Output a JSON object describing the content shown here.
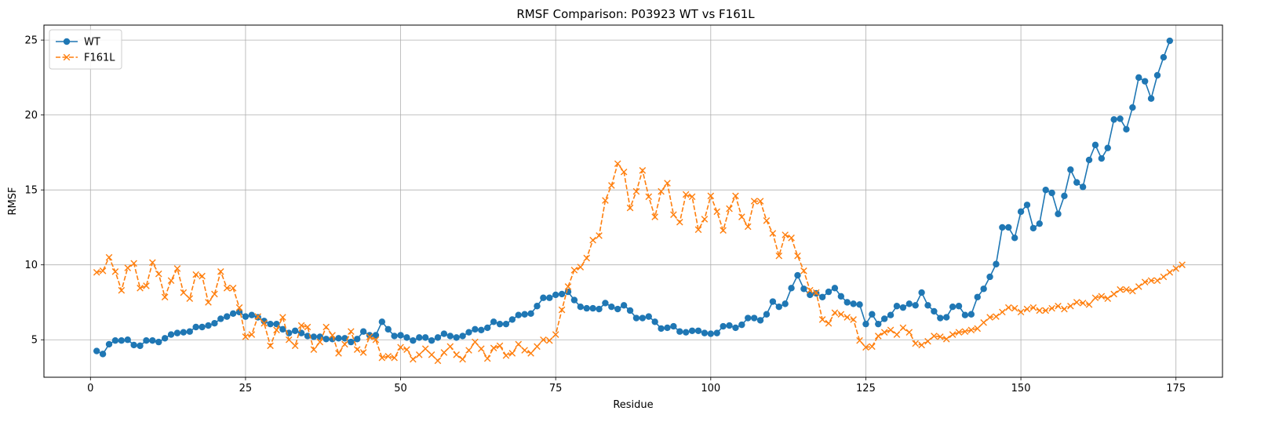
{
  "chart_data": {
    "type": "line",
    "title": "RMSF Comparison: P03923 WT vs F161L",
    "xlabel": "Residue",
    "ylabel": "RMSF",
    "xlim": [
      -7.5,
      182.5
    ],
    "ylim": [
      2.5,
      26.0
    ],
    "x_ticks": [
      0,
      25,
      50,
      75,
      100,
      125,
      150,
      175
    ],
    "y_ticks": [
      5,
      10,
      15,
      20,
      25
    ],
    "grid": true,
    "legend_position": "upper-left",
    "series": [
      {
        "name": "WT",
        "color": "#1f77b4",
        "line_style": "solid",
        "marker": "circle",
        "x_start": 1,
        "values": [
          4.25,
          4.05,
          4.7,
          4.95,
          4.95,
          5.0,
          4.65,
          4.6,
          4.95,
          4.95,
          4.85,
          5.1,
          5.35,
          5.45,
          5.5,
          5.55,
          5.85,
          5.85,
          5.95,
          6.1,
          6.4,
          6.55,
          6.75,
          6.85,
          6.55,
          6.65,
          6.5,
          6.25,
          6.05,
          6.05,
          5.7,
          5.45,
          5.6,
          5.45,
          5.25,
          5.2,
          5.2,
          5.05,
          5.05,
          5.1,
          5.1,
          4.85,
          5.05,
          5.55,
          5.3,
          5.3,
          6.2,
          5.7,
          5.25,
          5.3,
          5.15,
          4.95,
          5.15,
          5.15,
          4.95,
          5.15,
          5.4,
          5.25,
          5.15,
          5.25,
          5.5,
          5.7,
          5.65,
          5.8,
          6.2,
          6.05,
          6.05,
          6.35,
          6.65,
          6.7,
          6.75,
          7.25,
          7.8,
          7.8,
          8.0,
          8.05,
          8.2,
          7.65,
          7.2,
          7.1,
          7.1,
          7.05,
          7.45,
          7.2,
          7.05,
          7.3,
          6.95,
          6.45,
          6.45,
          6.55,
          6.2,
          5.75,
          5.8,
          5.9,
          5.55,
          5.5,
          5.6,
          5.6,
          5.45,
          5.4,
          5.45,
          5.9,
          5.95,
          5.8,
          6.0,
          6.45,
          6.45,
          6.3,
          6.7,
          7.55,
          7.2,
          7.4,
          8.45,
          9.3,
          8.4,
          8.0,
          8.1,
          7.85,
          8.2,
          8.45,
          7.9,
          7.5,
          7.4,
          7.35,
          6.05,
          6.7,
          6.05,
          6.4,
          6.65,
          7.25,
          7.15,
          7.4,
          7.3,
          8.15,
          7.3,
          6.9,
          6.45,
          6.5,
          7.2,
          7.25,
          6.65,
          6.7,
          7.85,
          8.4,
          9.2,
          10.05,
          12.5,
          12.5,
          11.8,
          13.55,
          14.0,
          12.45,
          12.75,
          15.0,
          14.8,
          13.4,
          14.6,
          16.35,
          15.5,
          15.2,
          17.0,
          18.0,
          17.1,
          17.8,
          19.7,
          19.75,
          19.05,
          20.5,
          22.5,
          22.25,
          21.1,
          22.65,
          23.85,
          24.95
        ]
      },
      {
        "name": "F161L",
        "color": "#ff7f0e",
        "line_style": "dashed",
        "marker": "x",
        "x_start": 1,
        "values": [
          9.5,
          9.6,
          10.5,
          9.55,
          8.3,
          9.8,
          10.1,
          8.45,
          8.6,
          10.15,
          9.4,
          7.85,
          8.95,
          9.75,
          8.15,
          7.75,
          9.35,
          9.25,
          7.5,
          8.05,
          9.55,
          8.45,
          8.45,
          7.15,
          5.2,
          5.35,
          6.55,
          6.1,
          4.6,
          5.65,
          6.5,
          5.0,
          4.6,
          5.95,
          5.85,
          4.35,
          4.85,
          5.85,
          5.3,
          4.1,
          4.7,
          5.55,
          4.35,
          4.15,
          5.2,
          5.0,
          3.8,
          3.9,
          3.8,
          4.5,
          4.35,
          3.7,
          4.0,
          4.4,
          4.0,
          3.6,
          4.15,
          4.55,
          4.0,
          3.7,
          4.3,
          4.85,
          4.4,
          3.75,
          4.45,
          4.6,
          3.95,
          4.1,
          4.7,
          4.3,
          4.1,
          4.55,
          5.0,
          4.95,
          5.35,
          7.0,
          8.55,
          9.65,
          9.85,
          10.45,
          11.65,
          11.95,
          14.3,
          15.3,
          16.75,
          16.2,
          13.8,
          14.9,
          16.3,
          14.55,
          13.2,
          14.9,
          15.45,
          13.35,
          12.85,
          14.7,
          14.55,
          12.35,
          13.05,
          14.6,
          13.55,
          12.3,
          13.75,
          14.6,
          13.2,
          12.55,
          14.25,
          14.25,
          12.95,
          12.1,
          10.6,
          12.0,
          11.8,
          10.6,
          9.6,
          8.3,
          8.15,
          6.35,
          6.1,
          6.8,
          6.7,
          6.5,
          6.35,
          4.95,
          4.5,
          4.55,
          5.25,
          5.5,
          5.65,
          5.35,
          5.8,
          5.5,
          4.75,
          4.65,
          4.9,
          5.25,
          5.2,
          5.05,
          5.35,
          5.5,
          5.55,
          5.65,
          5.75,
          6.15,
          6.5,
          6.55,
          6.85,
          7.15,
          7.1,
          6.85,
          7.05,
          7.15,
          6.95,
          6.95,
          7.1,
          7.25,
          7.05,
          7.25,
          7.5,
          7.45,
          7.35,
          7.8,
          7.9,
          7.75,
          8.05,
          8.35,
          8.35,
          8.25,
          8.55,
          8.85,
          8.95,
          8.95,
          9.2,
          9.5,
          9.75,
          10.0
        ]
      }
    ]
  }
}
